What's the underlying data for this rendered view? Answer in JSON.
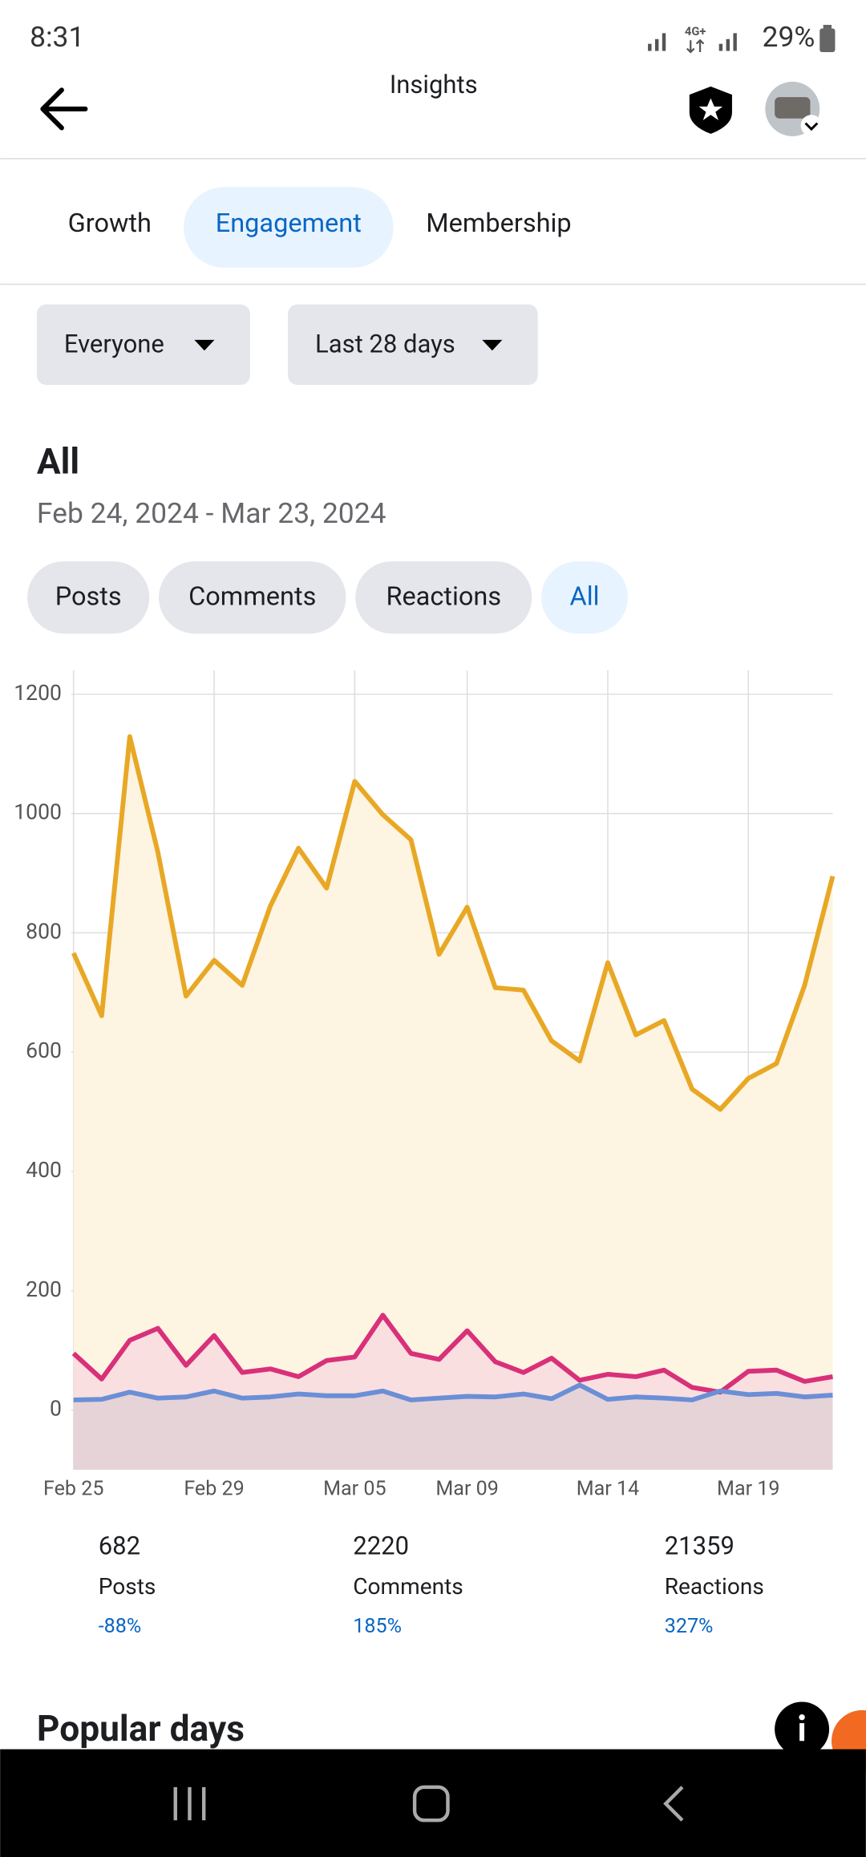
{
  "status_bar": {
    "time": "8:31",
    "network": "4G+",
    "battery": "29%"
  },
  "header": {
    "title": "Insights"
  },
  "tabs": [
    {
      "label": "Growth",
      "selected": false
    },
    {
      "label": "Engagement",
      "selected": true
    },
    {
      "label": "Membership",
      "selected": false
    }
  ],
  "filters": [
    "Everyone",
    "Last 28 days"
  ],
  "section": {
    "title": "All",
    "date_range": "Feb 24, 2024 - Mar 23, 2024"
  },
  "chips": [
    {
      "label": "Posts",
      "selected": false
    },
    {
      "label": "Comments",
      "selected": false
    },
    {
      "label": "Reactions",
      "selected": false
    },
    {
      "label": "All",
      "selected": true
    }
  ],
  "chart_data": {
    "type": "line",
    "categories": [
      "Feb 25",
      null,
      null,
      null,
      null,
      "Feb 29",
      null,
      null,
      null,
      null,
      "Mar 05",
      null,
      null,
      null,
      "Mar 09",
      null,
      null,
      null,
      null,
      "Mar 14",
      null,
      null,
      null,
      null,
      "Mar 19",
      null,
      null,
      null
    ],
    "series": [
      {
        "color": "#e8a825",
        "fill": "#fdf4e1",
        "values": [
          766,
          661,
          1129,
          935,
          694,
          754,
          712,
          845,
          942,
          875,
          1054,
          998,
          956,
          764,
          843,
          708,
          704,
          619,
          585,
          750,
          629,
          653,
          538,
          504,
          556,
          581,
          712,
          895
        ]
      },
      {
        "color": "#d9307a",
        "fill": "#f9dfe0",
        "values": [
          95,
          52,
          117,
          137,
          75,
          125,
          63,
          69,
          56,
          83,
          89,
          159,
          95,
          85,
          133,
          81,
          63,
          87,
          50,
          60,
          56,
          67,
          38,
          30,
          65,
          67,
          48,
          56
        ]
      },
      {
        "color": "#6b8fd6",
        "fill": "#e6d3d8",
        "values": [
          17,
          18,
          30,
          20,
          22,
          32,
          20,
          22,
          27,
          24,
          24,
          32,
          17,
          20,
          23,
          22,
          27,
          19,
          42,
          18,
          22,
          20,
          17,
          32,
          26,
          28,
          22,
          25
        ]
      }
    ],
    "ylim": [
      -100,
      1250
    ],
    "yticks": [
      0,
      200,
      400,
      600,
      800,
      1000,
      1200
    ],
    "grid": true
  },
  "stats": [
    {
      "value": 682,
      "label": "Posts",
      "change": "-88%"
    },
    {
      "value": 2220,
      "label": "Comments",
      "change": "185%"
    },
    {
      "value": 21359,
      "label": "Reactions",
      "change": "327%"
    }
  ],
  "popular_days": {
    "title": "Popular days"
  }
}
